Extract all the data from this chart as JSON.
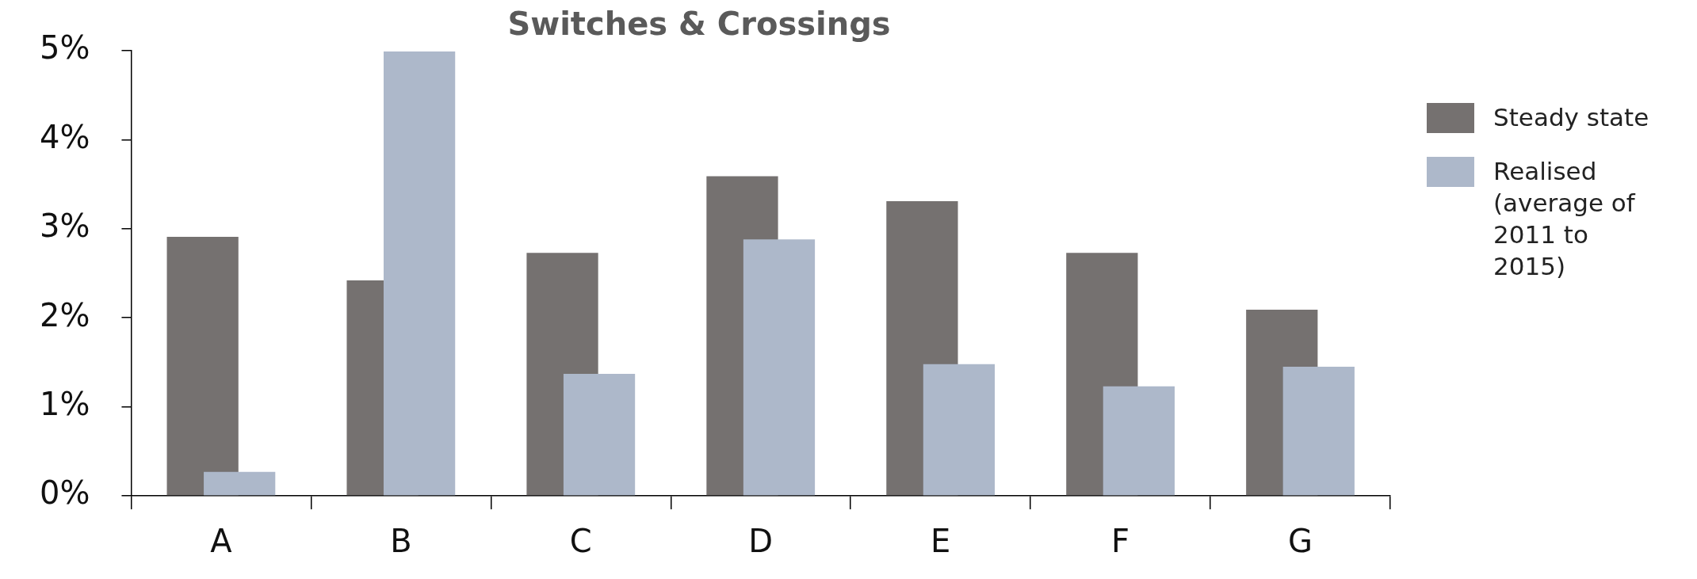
{
  "chart_data": {
    "type": "bar",
    "title": "Switches & Crossings",
    "categories": [
      "A",
      "B",
      "C",
      "D",
      "E",
      "F",
      "G"
    ],
    "series": [
      {
        "name": "Steady state",
        "color": "#757170",
        "values": [
          2.91,
          2.42,
          2.73,
          3.59,
          3.31,
          2.73,
          2.09
        ]
      },
      {
        "name": "Realised (average of 2011 to 2015)",
        "color": "#adb8ca",
        "values": [
          0.27,
          4.99,
          1.37,
          2.88,
          1.48,
          1.23,
          1.45
        ]
      }
    ],
    "ylim": [
      0,
      5
    ],
    "yticks": [
      {
        "value": 0,
        "label": "0%"
      },
      {
        "value": 1,
        "label": "1%"
      },
      {
        "value": 2,
        "label": "2%"
      },
      {
        "value": 3,
        "label": "3%"
      },
      {
        "value": 4,
        "label": "4%"
      },
      {
        "value": 5,
        "label": "5%"
      }
    ],
    "grid": false,
    "legend": "right"
  }
}
